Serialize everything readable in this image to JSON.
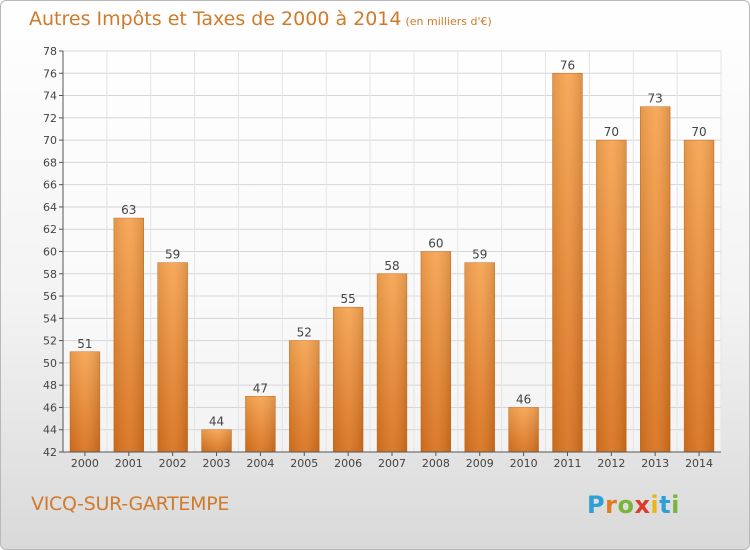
{
  "chart_data": {
    "type": "bar",
    "title": "Autres Impôts et Taxes de 2000 à 2014",
    "subtitle": "(en milliers d'€)",
    "categories": [
      "2000",
      "2001",
      "2002",
      "2003",
      "2004",
      "2005",
      "2006",
      "2007",
      "2008",
      "2009",
      "2010",
      "2011",
      "2012",
      "2013",
      "2014"
    ],
    "values": [
      51,
      63,
      59,
      44,
      47,
      52,
      55,
      58,
      60,
      59,
      46,
      76,
      70,
      73,
      70
    ],
    "ylim": [
      42,
      78
    ],
    "yticks": [
      42,
      44,
      46,
      48,
      50,
      52,
      54,
      56,
      58,
      60,
      62,
      64,
      66,
      68,
      70,
      72,
      74,
      76,
      78
    ],
    "grid": true,
    "bar_color": "#f0943a"
  },
  "footer": {
    "city": "VICQ-SUR-GARTEMPE",
    "logo_letters": [
      "P",
      "r",
      "o",
      "x",
      "i",
      "t",
      "i"
    ],
    "logo_colors": [
      "#2f9fd8",
      "#e07b22",
      "#7ab43c",
      "#e03a2a",
      "#e8b61a",
      "#2f9fd8",
      "#7ab43c"
    ]
  }
}
